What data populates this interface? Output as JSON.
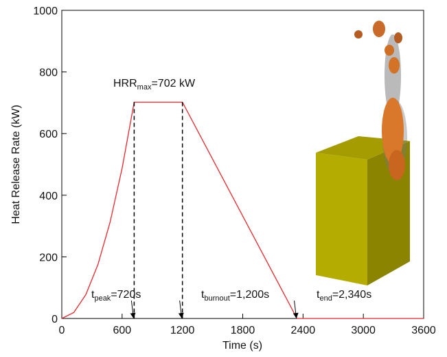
{
  "chart_data": {
    "type": "line",
    "x_label": "Time (s)",
    "y_label": "Heat Release Rate (kW)",
    "x": [
      0,
      120,
      240,
      360,
      480,
      600,
      720,
      1200,
      2340,
      3600
    ],
    "values": [
      0,
      19.5,
      78,
      175.5,
      312,
      487.5,
      702,
      702,
      0,
      0
    ],
    "color": "#e8262b",
    "xlim": [
      0,
      3600
    ],
    "xticks": [
      0,
      600,
      1200,
      1800,
      2400,
      3000,
      3600
    ],
    "ylim": [
      0,
      1000
    ],
    "yticks": [
      0,
      200,
      400,
      600,
      800,
      1000
    ],
    "annotations": [
      {
        "text": "HRR",
        "sub": "max",
        "after": "=702 kW"
      },
      {
        "text": "t",
        "sub": "peak",
        "after": "=720s"
      },
      {
        "text": "t",
        "sub": "burnout",
        "after": "=1,200s"
      },
      {
        "text": "t",
        "sub": "end",
        "after": "=2,340s"
      }
    ]
  }
}
